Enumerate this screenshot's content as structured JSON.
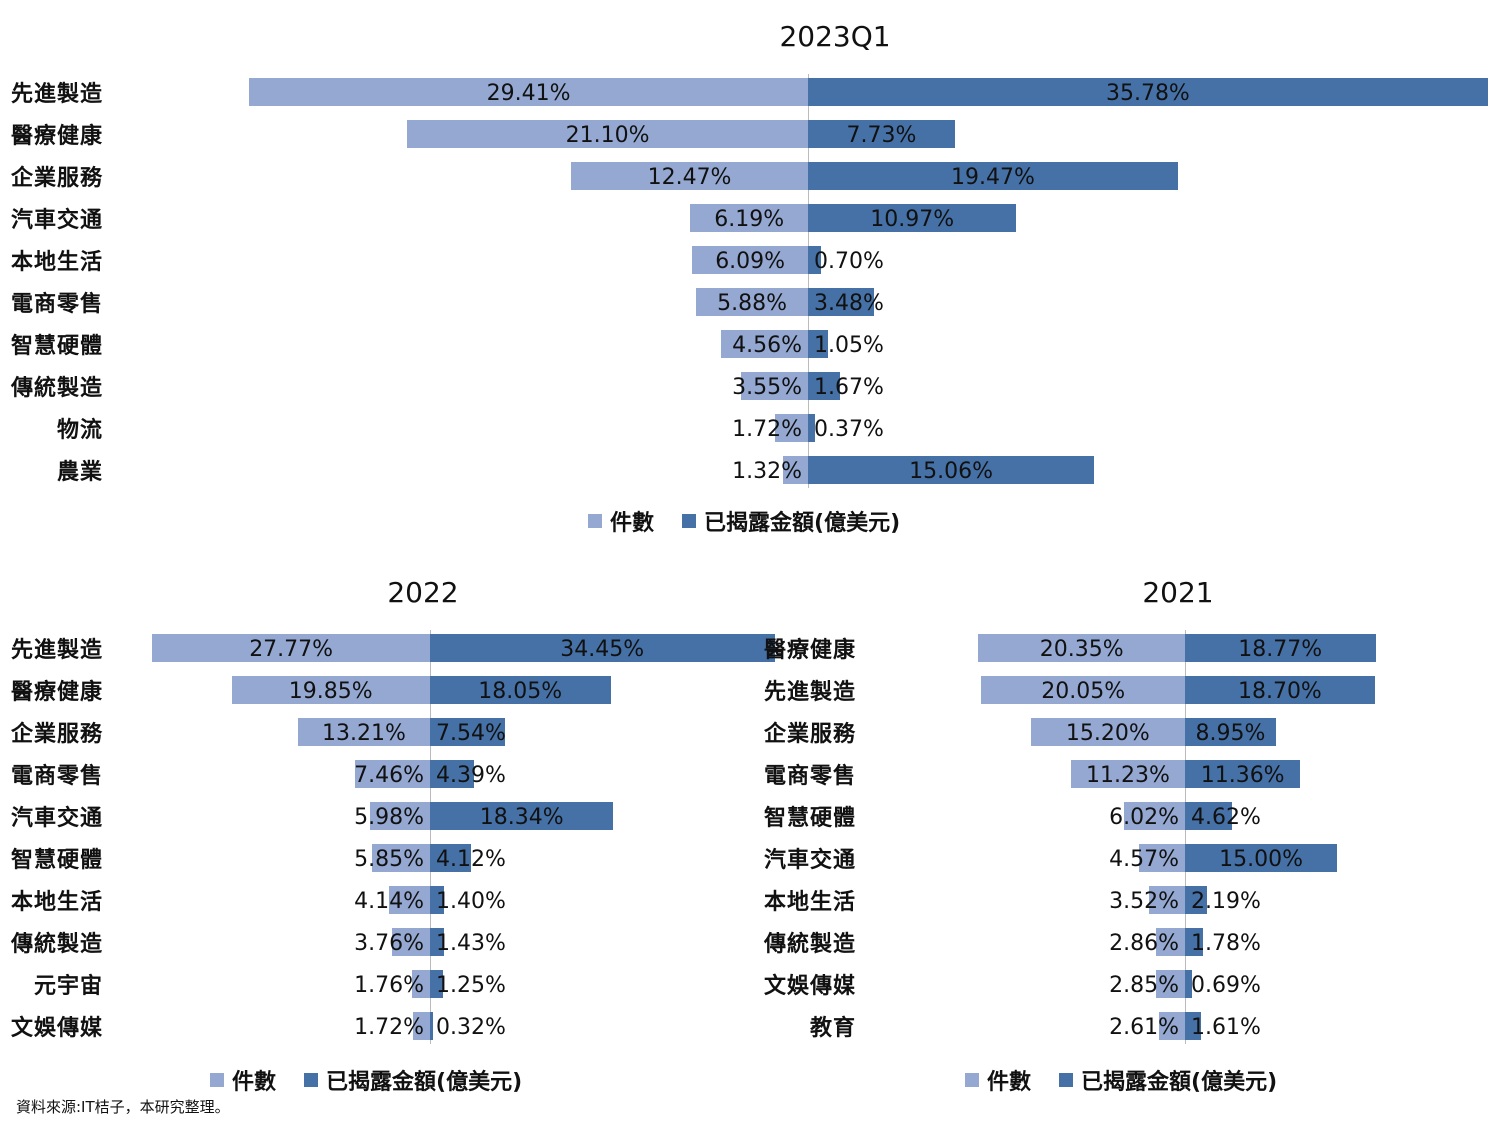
{
  "colors": {
    "count": "#94a8d2",
    "amount": "#4571a7"
  },
  "legend": {
    "count_label": "件數",
    "amount_label": "已揭露金額(億美元)"
  },
  "source_note": "資料來源:IT桔子，本研究整理。",
  "chart_data": [
    {
      "type": "bar",
      "title": "2023Q1",
      "categories": [
        "先進製造",
        "醫療健康",
        "企業服務",
        "汽車交通",
        "本地生活",
        "電商零售",
        "智慧硬體",
        "傳統製造",
        "物流",
        "農業"
      ],
      "series": [
        {
          "name": "件數",
          "values": [
            29.41,
            21.1,
            12.47,
            6.19,
            6.09,
            5.88,
            4.56,
            3.55,
            1.72,
            1.32
          ],
          "labels": [
            "29.41%",
            "21.10%",
            "12.47%",
            "6.19%",
            "6.09%",
            "5.88%",
            "4.56%",
            "3.55%",
            "1.72%",
            "1.32%"
          ]
        },
        {
          "name": "已揭露金額(億美元)",
          "values": [
            35.78,
            7.73,
            19.47,
            10.97,
            0.7,
            3.48,
            1.05,
            1.67,
            0.37,
            15.06
          ],
          "labels": [
            "35.78%",
            "7.73%",
            "19.47%",
            "10.97%",
            "0.70%",
            "3.48%",
            "1.05%",
            "1.67%",
            "0.37%",
            "15.06%"
          ]
        }
      ]
    },
    {
      "type": "bar",
      "title": "2022",
      "categories": [
        "先進製造",
        "醫療健康",
        "企業服務",
        "電商零售",
        "汽車交通",
        "智慧硬體",
        "本地生活",
        "傳統製造",
        "元宇宙",
        "文娛傳媒"
      ],
      "series": [
        {
          "name": "件數",
          "values": [
            27.77,
            19.85,
            13.21,
            7.46,
            5.98,
            5.85,
            4.14,
            3.76,
            1.76,
            1.72
          ],
          "labels": [
            "27.77%",
            "19.85%",
            "13.21%",
            "7.46%",
            "5.98%",
            "5.85%",
            "4.14%",
            "3.76%",
            "1.76%",
            "1.72%"
          ]
        },
        {
          "name": "已揭露金額(億美元)",
          "values": [
            34.45,
            18.05,
            7.54,
            4.39,
            18.34,
            4.12,
            1.4,
            1.43,
            1.25,
            0.32
          ],
          "labels": [
            "34.45%",
            "18.05%",
            "7.54%",
            "4.39%",
            "18.34%",
            "4.12%",
            "1.40%",
            "1.43%",
            "1.25%",
            "0.32%"
          ]
        }
      ]
    },
    {
      "type": "bar",
      "title": "2021",
      "categories": [
        "醫療健康",
        "先進製造",
        "企業服務",
        "電商零售",
        "智慧硬體",
        "汽車交通",
        "本地生活",
        "傳統製造",
        "文娛傳媒",
        "教育"
      ],
      "series": [
        {
          "name": "件數",
          "values": [
            20.35,
            20.05,
            15.2,
            11.23,
            6.02,
            4.57,
            3.52,
            2.86,
            2.85,
            2.61
          ],
          "labels": [
            "20.35%",
            "20.05%",
            "15.20%",
            "11.23%",
            "6.02%",
            "4.57%",
            "3.52%",
            "2.86%",
            "2.85%",
            "2.61%"
          ]
        },
        {
          "name": "已揭露金額(億美元)",
          "values": [
            18.77,
            18.7,
            8.95,
            11.36,
            4.62,
            15.0,
            2.19,
            1.78,
            0.69,
            1.61
          ],
          "labels": [
            "18.77%",
            "18.70%",
            "8.95%",
            "11.36%",
            "4.62%",
            "15.00%",
            "2.19%",
            "1.78%",
            "0.69%",
            "1.61%"
          ]
        }
      ]
    }
  ]
}
